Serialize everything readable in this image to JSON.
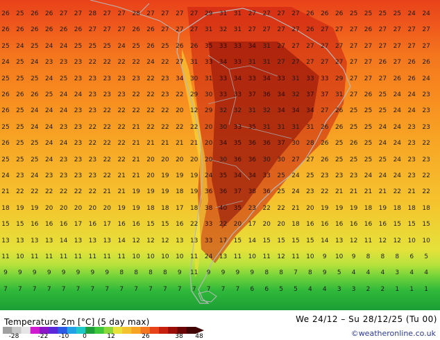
{
  "header": {
    "legend_title": "Temperature 2m [°C] (5 day max)",
    "date_range": "We 24/12 – Su 28/12/25 (Tu 00)",
    "credit": "©weatheronline.co.uk"
  },
  "colorbar": {
    "ticks": [
      "-28",
      "-22",
      "-10",
      "0",
      "12",
      "26",
      "38",
      "48"
    ],
    "colors": [
      "#a0a0a0",
      "#c8c8c8",
      "#e6e6e6",
      "#d01ad0",
      "#8a16c8",
      "#5a28d8",
      "#2a5ae6",
      "#22a2e6",
      "#1ec8c8",
      "#1e9e3a",
      "#3cc83a",
      "#8ad83a",
      "#e8e23a",
      "#f4c22e",
      "#f7a424",
      "#f4761e",
      "#e8421a",
      "#c8200e",
      "#9a0e0a",
      "#6a0606",
      "#400404"
    ]
  },
  "map": {
    "rows": [
      [
        "26",
        "25",
        "26",
        "26",
        "27",
        "27",
        "28",
        "27",
        "27",
        "28",
        "27",
        "27",
        "27",
        "27",
        "29",
        "31",
        "31",
        "27",
        "27",
        "27",
        "27",
        "26",
        "26",
        "26",
        "25",
        "25",
        "25",
        "25",
        "24",
        "24"
      ],
      [
        "26",
        "26",
        "26",
        "26",
        "26",
        "26",
        "27",
        "27",
        "27",
        "26",
        "26",
        "27",
        "27",
        "27",
        "31",
        "32",
        "31",
        "27",
        "27",
        "27",
        "27",
        "26",
        "27",
        "27",
        "27",
        "26",
        "27",
        "27",
        "27",
        "27"
      ],
      [
        "25",
        "24",
        "25",
        "24",
        "24",
        "25",
        "25",
        "25",
        "24",
        "25",
        "26",
        "25",
        "26",
        "26",
        "35",
        "33",
        "33",
        "34",
        "31",
        "27",
        "27",
        "27",
        "27",
        "27",
        "27",
        "27",
        "27",
        "27",
        "27",
        "27"
      ],
      [
        "24",
        "25",
        "24",
        "23",
        "23",
        "23",
        "22",
        "22",
        "22",
        "22",
        "24",
        "22",
        "27",
        "31",
        "33",
        "34",
        "33",
        "31",
        "31",
        "27",
        "27",
        "27",
        "27",
        "27",
        "27",
        "27",
        "26",
        "27",
        "26",
        "26"
      ],
      [
        "25",
        "25",
        "25",
        "24",
        "25",
        "23",
        "23",
        "23",
        "23",
        "23",
        "22",
        "23",
        "34",
        "30",
        "31",
        "33",
        "34",
        "33",
        "34",
        "33",
        "31",
        "33",
        "33",
        "29",
        "27",
        "27",
        "27",
        "26",
        "26",
        "24"
      ],
      [
        "26",
        "26",
        "26",
        "25",
        "24",
        "24",
        "23",
        "23",
        "23",
        "22",
        "22",
        "23",
        "22",
        "29",
        "30",
        "33",
        "33",
        "37",
        "36",
        "34",
        "32",
        "37",
        "37",
        "31",
        "27",
        "26",
        "25",
        "24",
        "24",
        "23"
      ],
      [
        "26",
        "25",
        "24",
        "24",
        "24",
        "23",
        "23",
        "22",
        "22",
        "22",
        "22",
        "22",
        "20",
        "12",
        "29",
        "32",
        "32",
        "31",
        "32",
        "34",
        "34",
        "34",
        "27",
        "26",
        "25",
        "25",
        "25",
        "24",
        "24",
        "23"
      ],
      [
        "25",
        "25",
        "24",
        "24",
        "23",
        "23",
        "22",
        "22",
        "22",
        "21",
        "22",
        "22",
        "22",
        "22",
        "20",
        "30",
        "33",
        "35",
        "31",
        "31",
        "31",
        "31",
        "26",
        "26",
        "25",
        "25",
        "24",
        "24",
        "23",
        "23"
      ],
      [
        "26",
        "25",
        "25",
        "24",
        "24",
        "23",
        "22",
        "22",
        "22",
        "21",
        "21",
        "21",
        "21",
        "21",
        "20",
        "34",
        "35",
        "36",
        "36",
        "37",
        "30",
        "28",
        "26",
        "25",
        "26",
        "25",
        "24",
        "24",
        "23",
        "22"
      ],
      [
        "25",
        "25",
        "25",
        "24",
        "23",
        "23",
        "23",
        "22",
        "22",
        "21",
        "20",
        "20",
        "20",
        "20",
        "20",
        "30",
        "36",
        "36",
        "30",
        "30",
        "27",
        "27",
        "26",
        "25",
        "25",
        "25",
        "25",
        "24",
        "23",
        "23"
      ],
      [
        "24",
        "23",
        "24",
        "23",
        "23",
        "23",
        "23",
        "22",
        "21",
        "21",
        "20",
        "19",
        "19",
        "19",
        "24",
        "35",
        "34",
        "34",
        "33",
        "25",
        "24",
        "25",
        "23",
        "23",
        "23",
        "24",
        "24",
        "24",
        "23",
        "22"
      ],
      [
        "21",
        "22",
        "22",
        "22",
        "22",
        "22",
        "22",
        "21",
        "21",
        "19",
        "19",
        "19",
        "18",
        "19",
        "36",
        "36",
        "37",
        "38",
        "36",
        "25",
        "24",
        "23",
        "22",
        "21",
        "21",
        "21",
        "21",
        "22",
        "21",
        "22"
      ],
      [
        "18",
        "19",
        "19",
        "20",
        "20",
        "20",
        "20",
        "20",
        "19",
        "19",
        "18",
        "18",
        "17",
        "18",
        "38",
        "40",
        "35",
        "23",
        "22",
        "22",
        "21",
        "20",
        "19",
        "19",
        "19",
        "18",
        "19",
        "18",
        "18",
        "18"
      ],
      [
        "15",
        "15",
        "16",
        "16",
        "16",
        "17",
        "16",
        "17",
        "16",
        "16",
        "15",
        "15",
        "16",
        "22",
        "33",
        "22",
        "20",
        "17",
        "20",
        "20",
        "18",
        "16",
        "16",
        "16",
        "16",
        "16",
        "16",
        "15",
        "15",
        "15"
      ],
      [
        "13",
        "13",
        "13",
        "13",
        "14",
        "13",
        "13",
        "13",
        "14",
        "12",
        "12",
        "12",
        "13",
        "13",
        "33",
        "17",
        "15",
        "14",
        "15",
        "15",
        "15",
        "15",
        "14",
        "13",
        "12",
        "11",
        "12",
        "12",
        "10",
        "10"
      ],
      [
        "11",
        "10",
        "11",
        "11",
        "11",
        "11",
        "11",
        "11",
        "11",
        "10",
        "10",
        "10",
        "10",
        "11",
        "24",
        "13",
        "11",
        "10",
        "11",
        "12",
        "11",
        "10",
        "9",
        "10",
        "9",
        "8",
        "8",
        "8",
        "6",
        "5"
      ],
      [
        "9",
        "9",
        "9",
        "9",
        "9",
        "9",
        "9",
        "9",
        "8",
        "8",
        "8",
        "8",
        "9",
        "11",
        "9",
        "9",
        "9",
        "9",
        "8",
        "8",
        "7",
        "8",
        "9",
        "5",
        "4",
        "4",
        "4",
        "3",
        "4",
        "4"
      ],
      [
        "7",
        "7",
        "7",
        "7",
        "7",
        "7",
        "7",
        "7",
        "7",
        "7",
        "7",
        "7",
        "7",
        "7",
        "7",
        "7",
        "7",
        "6",
        "6",
        "5",
        "5",
        "4",
        "4",
        "3",
        "3",
        "2",
        "2",
        "1",
        "1",
        "1"
      ]
    ]
  }
}
